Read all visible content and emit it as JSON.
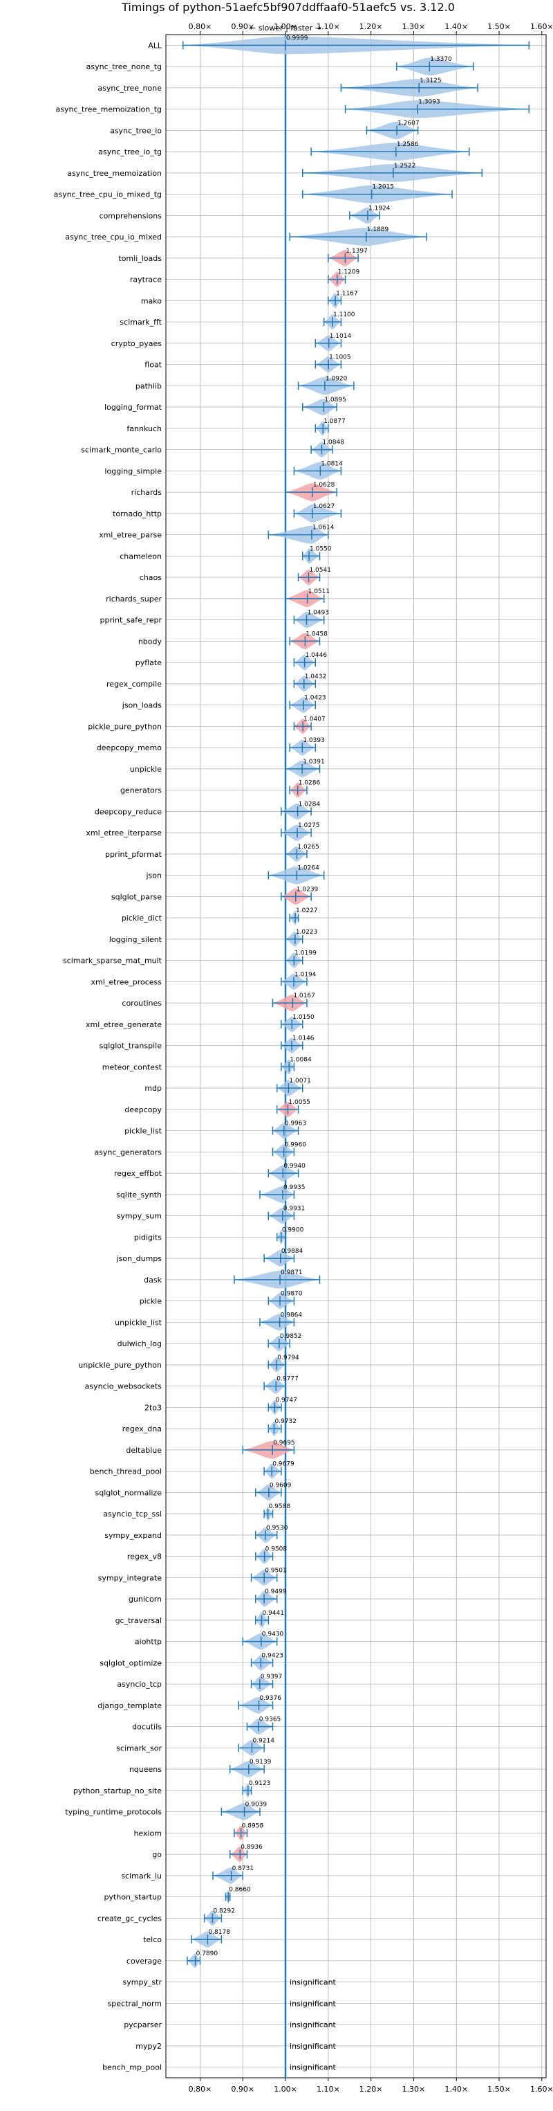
{
  "chart_data": {
    "type": "violin",
    "title": "Timings of python-51aefc5bf907ddffaaf0-51aefc5 vs. 3.12.0",
    "direction_label": "← slower | faster →",
    "xlim": [
      0.72,
      1.61
    ],
    "x_ticks": [
      0.8,
      0.9,
      1.0,
      1.1,
      1.2,
      1.3,
      1.4,
      1.5,
      1.6
    ],
    "x_tick_labels": [
      "0.80×",
      "0.90×",
      "1.00×",
      "1.10×",
      "1.20×",
      "1.30×",
      "1.40×",
      "1.50×",
      "1.60×"
    ],
    "grid": true,
    "insignificant_label": "insignificant",
    "colors": {
      "faster": "#a7c7e7",
      "slower": "#f4a3a8",
      "line": "#1f77b4"
    },
    "rows": [
      {
        "name": "ALL",
        "value": 0.9999,
        "label": "0.9999",
        "lo": 0.76,
        "hi": 1.57,
        "color": "faster"
      },
      {
        "name": "async_tree_none_tg",
        "value": 1.337,
        "label": "1.3370",
        "lo": 1.26,
        "hi": 1.44,
        "color": "faster"
      },
      {
        "name": "async_tree_none",
        "value": 1.3125,
        "label": "1.3125",
        "lo": 1.13,
        "hi": 1.45,
        "color": "faster"
      },
      {
        "name": "async_tree_memoization_tg",
        "value": 1.3093,
        "label": "1.3093",
        "lo": 1.14,
        "hi": 1.57,
        "color": "faster"
      },
      {
        "name": "async_tree_io",
        "value": 1.2607,
        "label": "1.2607",
        "lo": 1.19,
        "hi": 1.31,
        "color": "faster"
      },
      {
        "name": "async_tree_io_tg",
        "value": 1.2586,
        "label": "1.2586",
        "lo": 1.06,
        "hi": 1.43,
        "color": "faster"
      },
      {
        "name": "async_tree_memoization",
        "value": 1.2522,
        "label": "1.2522",
        "lo": 1.04,
        "hi": 1.46,
        "color": "faster"
      },
      {
        "name": "async_tree_cpu_io_mixed_tg",
        "value": 1.2015,
        "label": "1.2015",
        "lo": 1.04,
        "hi": 1.39,
        "color": "faster"
      },
      {
        "name": "comprehensions",
        "value": 1.1924,
        "label": "1.1924",
        "lo": 1.15,
        "hi": 1.22,
        "color": "faster"
      },
      {
        "name": "async_tree_cpu_io_mixed",
        "value": 1.1889,
        "label": "1.1889",
        "lo": 1.01,
        "hi": 1.33,
        "color": "faster"
      },
      {
        "name": "tomli_loads",
        "value": 1.1397,
        "label": "1.1397",
        "lo": 1.1,
        "hi": 1.17,
        "color": "slower"
      },
      {
        "name": "raytrace",
        "value": 1.1209,
        "label": "1.1209",
        "lo": 1.1,
        "hi": 1.14,
        "color": "slower"
      },
      {
        "name": "mako",
        "value": 1.1167,
        "label": "1.1167",
        "lo": 1.1,
        "hi": 1.13,
        "color": "faster"
      },
      {
        "name": "scimark_fft",
        "value": 1.11,
        "label": "1.1100",
        "lo": 1.09,
        "hi": 1.13,
        "color": "faster"
      },
      {
        "name": "crypto_pyaes",
        "value": 1.1014,
        "label": "1.1014",
        "lo": 1.07,
        "hi": 1.13,
        "color": "faster"
      },
      {
        "name": "float",
        "value": 1.1005,
        "label": "1.1005",
        "lo": 1.07,
        "hi": 1.13,
        "color": "faster"
      },
      {
        "name": "pathlib",
        "value": 1.092,
        "label": "1.0920",
        "lo": 1.03,
        "hi": 1.16,
        "color": "faster"
      },
      {
        "name": "logging_format",
        "value": 1.0895,
        "label": "1.0895",
        "lo": 1.04,
        "hi": 1.12,
        "color": "faster"
      },
      {
        "name": "fannkuch",
        "value": 1.0877,
        "label": "1.0877",
        "lo": 1.07,
        "hi": 1.1,
        "color": "faster"
      },
      {
        "name": "scimark_monte_carlo",
        "value": 1.0848,
        "label": "1.0848",
        "lo": 1.06,
        "hi": 1.11,
        "color": "faster"
      },
      {
        "name": "logging_simple",
        "value": 1.0814,
        "label": "1.0814",
        "lo": 1.02,
        "hi": 1.13,
        "color": "faster"
      },
      {
        "name": "richards",
        "value": 1.0628,
        "label": "1.0628",
        "lo": 1.0,
        "hi": 1.12,
        "color": "slower"
      },
      {
        "name": "tornado_http",
        "value": 1.0627,
        "label": "1.0627",
        "lo": 1.02,
        "hi": 1.13,
        "color": "faster"
      },
      {
        "name": "xml_etree_parse",
        "value": 1.0614,
        "label": "1.0614",
        "lo": 0.96,
        "hi": 1.1,
        "color": "faster"
      },
      {
        "name": "chameleon",
        "value": 1.055,
        "label": "1.0550",
        "lo": 1.04,
        "hi": 1.08,
        "color": "faster"
      },
      {
        "name": "chaos",
        "value": 1.0541,
        "label": "1.0541",
        "lo": 1.03,
        "hi": 1.08,
        "color": "slower"
      },
      {
        "name": "richards_super",
        "value": 1.0511,
        "label": "1.0511",
        "lo": 1.0,
        "hi": 1.09,
        "color": "slower"
      },
      {
        "name": "pprint_safe_repr",
        "value": 1.0493,
        "label": "1.0493",
        "lo": 1.02,
        "hi": 1.09,
        "color": "faster"
      },
      {
        "name": "nbody",
        "value": 1.0458,
        "label": "1.0458",
        "lo": 1.01,
        "hi": 1.08,
        "color": "slower"
      },
      {
        "name": "pyflate",
        "value": 1.0446,
        "label": "1.0446",
        "lo": 1.02,
        "hi": 1.07,
        "color": "faster"
      },
      {
        "name": "regex_compile",
        "value": 1.0432,
        "label": "1.0432",
        "lo": 1.02,
        "hi": 1.07,
        "color": "faster"
      },
      {
        "name": "json_loads",
        "value": 1.0423,
        "label": "1.0423",
        "lo": 1.01,
        "hi": 1.07,
        "color": "faster"
      },
      {
        "name": "pickle_pure_python",
        "value": 1.0407,
        "label": "1.0407",
        "lo": 1.02,
        "hi": 1.06,
        "color": "slower"
      },
      {
        "name": "deepcopy_memo",
        "value": 1.0393,
        "label": "1.0393",
        "lo": 1.01,
        "hi": 1.07,
        "color": "faster"
      },
      {
        "name": "unpickle",
        "value": 1.0391,
        "label": "1.0391",
        "lo": 1.0,
        "hi": 1.08,
        "color": "faster"
      },
      {
        "name": "generators",
        "value": 1.0286,
        "label": "1.0286",
        "lo": 1.01,
        "hi": 1.05,
        "color": "slower"
      },
      {
        "name": "deepcopy_reduce",
        "value": 1.0284,
        "label": "1.0284",
        "lo": 0.99,
        "hi": 1.06,
        "color": "faster"
      },
      {
        "name": "xml_etree_iterparse",
        "value": 1.0275,
        "label": "1.0275",
        "lo": 0.99,
        "hi": 1.06,
        "color": "faster"
      },
      {
        "name": "pprint_pformat",
        "value": 1.0265,
        "label": "1.0265",
        "lo": 1.0,
        "hi": 1.05,
        "color": "faster"
      },
      {
        "name": "json",
        "value": 1.0264,
        "label": "1.0264",
        "lo": 0.96,
        "hi": 1.09,
        "color": "faster"
      },
      {
        "name": "sqlglot_parse",
        "value": 1.0239,
        "label": "1.0239",
        "lo": 0.99,
        "hi": 1.06,
        "color": "slower"
      },
      {
        "name": "pickle_dict",
        "value": 1.0227,
        "label": "1.0227",
        "lo": 1.01,
        "hi": 1.03,
        "color": "faster"
      },
      {
        "name": "logging_silent",
        "value": 1.0223,
        "label": "1.0223",
        "lo": 1.0,
        "hi": 1.04,
        "color": "faster"
      },
      {
        "name": "scimark_sparse_mat_mult",
        "value": 1.0199,
        "label": "1.0199",
        "lo": 1.0,
        "hi": 1.04,
        "color": "faster"
      },
      {
        "name": "xml_etree_process",
        "value": 1.0194,
        "label": "1.0194",
        "lo": 0.99,
        "hi": 1.05,
        "color": "faster"
      },
      {
        "name": "coroutines",
        "value": 1.0167,
        "label": "1.0167",
        "lo": 0.97,
        "hi": 1.05,
        "color": "slower"
      },
      {
        "name": "xml_etree_generate",
        "value": 1.015,
        "label": "1.0150",
        "lo": 0.99,
        "hi": 1.04,
        "color": "faster"
      },
      {
        "name": "sqlglot_transpile",
        "value": 1.0146,
        "label": "1.0146",
        "lo": 0.99,
        "hi": 1.04,
        "color": "faster"
      },
      {
        "name": "meteor_contest",
        "value": 1.0084,
        "label": "1.0084",
        "lo": 0.99,
        "hi": 1.02,
        "color": "faster"
      },
      {
        "name": "mdp",
        "value": 1.0071,
        "label": "1.0071",
        "lo": 0.98,
        "hi": 1.04,
        "color": "faster"
      },
      {
        "name": "deepcopy",
        "value": 1.0055,
        "label": "1.0055",
        "lo": 0.98,
        "hi": 1.03,
        "color": "slower"
      },
      {
        "name": "pickle_list",
        "value": 0.9963,
        "label": "0.9963",
        "lo": 0.97,
        "hi": 1.03,
        "color": "faster"
      },
      {
        "name": "async_generators",
        "value": 0.996,
        "label": "0.9960",
        "lo": 0.97,
        "hi": 1.02,
        "color": "faster"
      },
      {
        "name": "regex_effbot",
        "value": 0.994,
        "label": "0.9940",
        "lo": 0.96,
        "hi": 1.03,
        "color": "faster"
      },
      {
        "name": "sqlite_synth",
        "value": 0.9935,
        "label": "0.9935",
        "lo": 0.94,
        "hi": 1.02,
        "color": "faster"
      },
      {
        "name": "sympy_sum",
        "value": 0.9931,
        "label": "0.9931",
        "lo": 0.96,
        "hi": 1.02,
        "color": "faster"
      },
      {
        "name": "pidigits",
        "value": 0.99,
        "label": "0.9900",
        "lo": 0.98,
        "hi": 1.0,
        "color": "faster"
      },
      {
        "name": "json_dumps",
        "value": 0.9884,
        "label": "0.9884",
        "lo": 0.95,
        "hi": 1.02,
        "color": "faster"
      },
      {
        "name": "dask",
        "value": 0.9871,
        "label": "0.9871",
        "lo": 0.88,
        "hi": 1.08,
        "color": "faster"
      },
      {
        "name": "pickle",
        "value": 0.987,
        "label": "0.9870",
        "lo": 0.96,
        "hi": 1.02,
        "color": "faster"
      },
      {
        "name": "unpickle_list",
        "value": 0.9864,
        "label": "0.9864",
        "lo": 0.94,
        "hi": 1.02,
        "color": "faster"
      },
      {
        "name": "dulwich_log",
        "value": 0.9852,
        "label": "0.9852",
        "lo": 0.96,
        "hi": 1.01,
        "color": "faster"
      },
      {
        "name": "unpickle_pure_python",
        "value": 0.9794,
        "label": "0.9794",
        "lo": 0.96,
        "hi": 1.0,
        "color": "faster"
      },
      {
        "name": "asyncio_websockets",
        "value": 0.9777,
        "label": "0.9777",
        "lo": 0.95,
        "hi": 1.0,
        "color": "faster"
      },
      {
        "name": "2to3",
        "value": 0.9747,
        "label": "0.9747",
        "lo": 0.96,
        "hi": 0.99,
        "color": "faster"
      },
      {
        "name": "regex_dna",
        "value": 0.9732,
        "label": "0.9732",
        "lo": 0.96,
        "hi": 0.99,
        "color": "faster"
      },
      {
        "name": "deltablue",
        "value": 0.9695,
        "label": "0.9695",
        "lo": 0.9,
        "hi": 1.02,
        "color": "slower"
      },
      {
        "name": "bench_thread_pool",
        "value": 0.9679,
        "label": "0.9679",
        "lo": 0.95,
        "hi": 0.99,
        "color": "faster"
      },
      {
        "name": "sqlglot_normalize",
        "value": 0.9609,
        "label": "0.9609",
        "lo": 0.93,
        "hi": 0.99,
        "color": "faster"
      },
      {
        "name": "asyncio_tcp_ssl",
        "value": 0.9588,
        "label": "0.9588",
        "lo": 0.95,
        "hi": 0.97,
        "color": "faster"
      },
      {
        "name": "sympy_expand",
        "value": 0.953,
        "label": "0.9530",
        "lo": 0.93,
        "hi": 0.98,
        "color": "faster"
      },
      {
        "name": "regex_v8",
        "value": 0.9508,
        "label": "0.9508",
        "lo": 0.93,
        "hi": 0.97,
        "color": "faster"
      },
      {
        "name": "sympy_integrate",
        "value": 0.9501,
        "label": "0.9501",
        "lo": 0.92,
        "hi": 0.98,
        "color": "faster"
      },
      {
        "name": "gunicorn",
        "value": 0.9499,
        "label": "0.9499",
        "lo": 0.93,
        "hi": 0.98,
        "color": "faster"
      },
      {
        "name": "gc_traversal",
        "value": 0.9441,
        "label": "0.9441",
        "lo": 0.93,
        "hi": 0.96,
        "color": "faster"
      },
      {
        "name": "aiohttp",
        "value": 0.943,
        "label": "0.9430",
        "lo": 0.9,
        "hi": 0.98,
        "color": "faster"
      },
      {
        "name": "sqlglot_optimize",
        "value": 0.9423,
        "label": "0.9423",
        "lo": 0.92,
        "hi": 0.97,
        "color": "faster"
      },
      {
        "name": "asyncio_tcp",
        "value": 0.9397,
        "label": "0.9397",
        "lo": 0.92,
        "hi": 0.97,
        "color": "faster"
      },
      {
        "name": "django_template",
        "value": 0.9376,
        "label": "0.9376",
        "lo": 0.89,
        "hi": 0.97,
        "color": "faster"
      },
      {
        "name": "docutils",
        "value": 0.9365,
        "label": "0.9365",
        "lo": 0.91,
        "hi": 0.97,
        "color": "faster"
      },
      {
        "name": "scimark_sor",
        "value": 0.9214,
        "label": "0.9214",
        "lo": 0.89,
        "hi": 0.95,
        "color": "faster"
      },
      {
        "name": "nqueens",
        "value": 0.9139,
        "label": "0.9139",
        "lo": 0.87,
        "hi": 0.95,
        "color": "faster"
      },
      {
        "name": "python_startup_no_site",
        "value": 0.9123,
        "label": "0.9123",
        "lo": 0.9,
        "hi": 0.92,
        "color": "faster"
      },
      {
        "name": "typing_runtime_protocols",
        "value": 0.9039,
        "label": "0.9039",
        "lo": 0.85,
        "hi": 0.94,
        "color": "faster"
      },
      {
        "name": "hexiom",
        "value": 0.8958,
        "label": "0.8958",
        "lo": 0.88,
        "hi": 0.91,
        "color": "slower"
      },
      {
        "name": "go",
        "value": 0.8936,
        "label": "0.8936",
        "lo": 0.87,
        "hi": 0.91,
        "color": "slower"
      },
      {
        "name": "scimark_lu",
        "value": 0.8731,
        "label": "0.8731",
        "lo": 0.83,
        "hi": 0.9,
        "color": "faster"
      },
      {
        "name": "python_startup",
        "value": 0.866,
        "label": "0.8660",
        "lo": 0.86,
        "hi": 0.87,
        "color": "faster"
      },
      {
        "name": "create_gc_cycles",
        "value": 0.8292,
        "label": "0.8292",
        "lo": 0.81,
        "hi": 0.85,
        "color": "faster"
      },
      {
        "name": "telco",
        "value": 0.8178,
        "label": "0.8178",
        "lo": 0.78,
        "hi": 0.85,
        "color": "faster"
      },
      {
        "name": "coverage",
        "value": 0.789,
        "label": "0.7890",
        "lo": 0.77,
        "hi": 0.8,
        "color": "faster"
      },
      {
        "name": "sympy_str",
        "value": null,
        "label": "insignificant"
      },
      {
        "name": "spectral_norm",
        "value": null,
        "label": "insignificant"
      },
      {
        "name": "pycparser",
        "value": null,
        "label": "insignificant"
      },
      {
        "name": "mypy2",
        "value": null,
        "label": "insignificant"
      },
      {
        "name": "bench_mp_pool",
        "value": null,
        "label": "insignificant"
      }
    ]
  }
}
